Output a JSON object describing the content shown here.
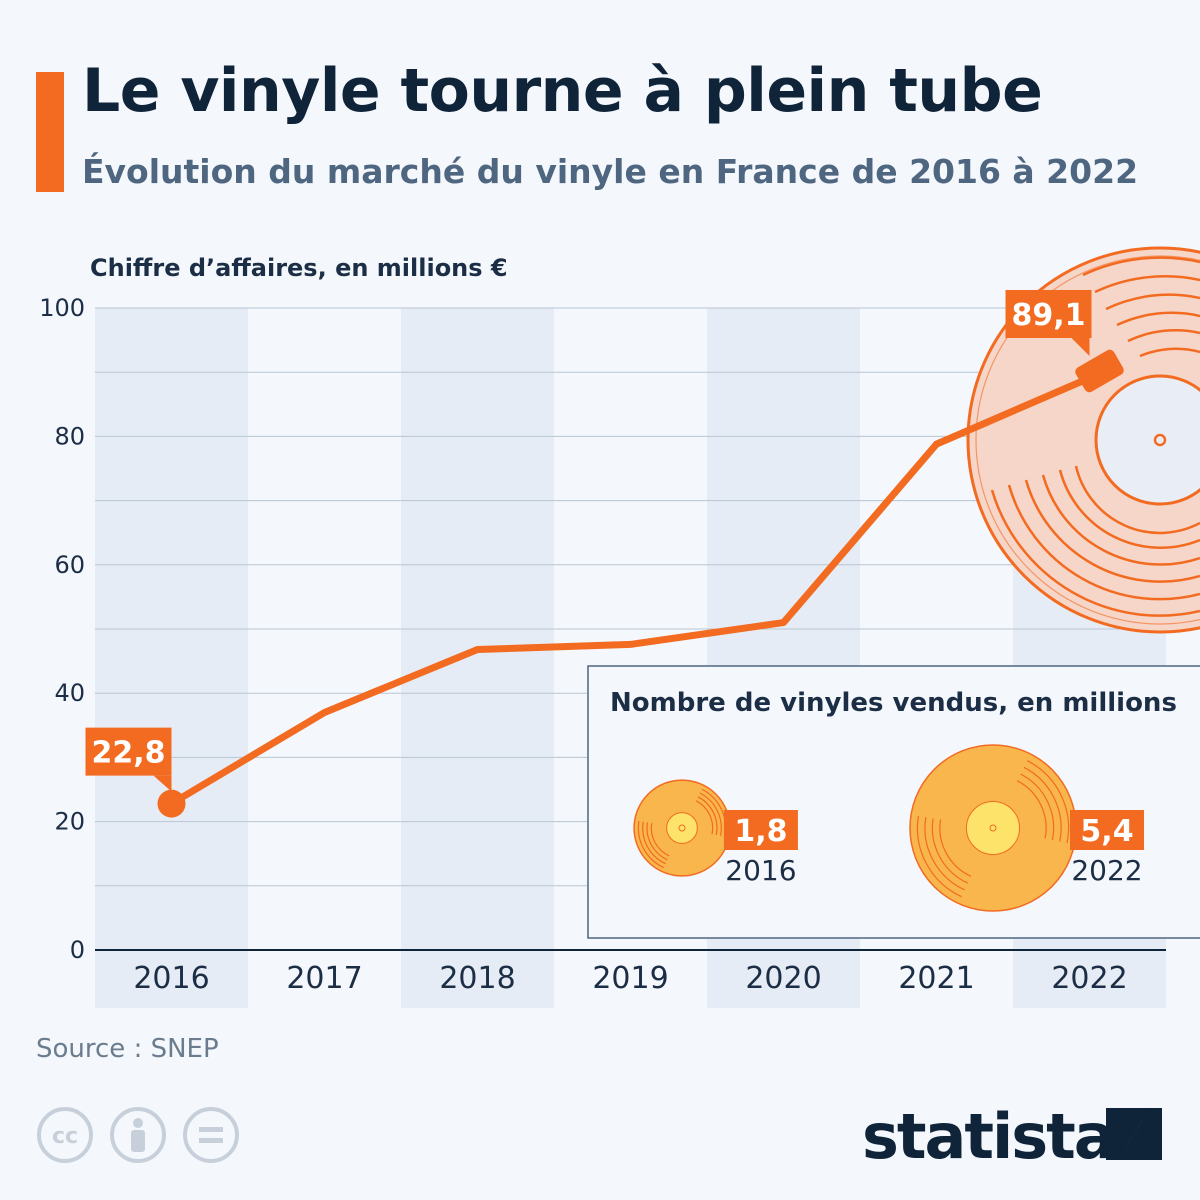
{
  "title": "Le vinyle tourne à plein tube",
  "subtitle": "Évolution du marché du vinyle en France de 2016 à 2022",
  "source": "Source : SNEP",
  "brand": "statista",
  "colors": {
    "accent": "#f26b21",
    "dark": "#0f2339",
    "band": "#e6ecf5",
    "disc": "#f8b64c"
  },
  "chart_data": [
    {
      "type": "line",
      "ylabel": "Chiffre d’affaires, en millions €",
      "x": [
        "2016",
        "2017",
        "2018",
        "2019",
        "2020",
        "2021",
        "2022"
      ],
      "values": [
        22.8,
        37.0,
        46.8,
        47.6,
        51.0,
        78.8,
        89.1
      ],
      "ylim": [
        0,
        100
      ],
      "yticks": [
        "0",
        "20",
        "40",
        "60",
        "80",
        "100"
      ],
      "grid": true,
      "data_labels": {
        "first": "22,8",
        "last": "89,1"
      }
    },
    {
      "type": "bar",
      "title": "Nombre de vinyles vendus, en millions",
      "categories": [
        "2016",
        "2022"
      ],
      "values": [
        1.8,
        5.4
      ],
      "value_labels": [
        "1,8",
        "5,4"
      ]
    }
  ],
  "icons": [
    "cc-icon",
    "attribution-icon",
    "no-derivatives-icon",
    "statista-logo-icon"
  ]
}
